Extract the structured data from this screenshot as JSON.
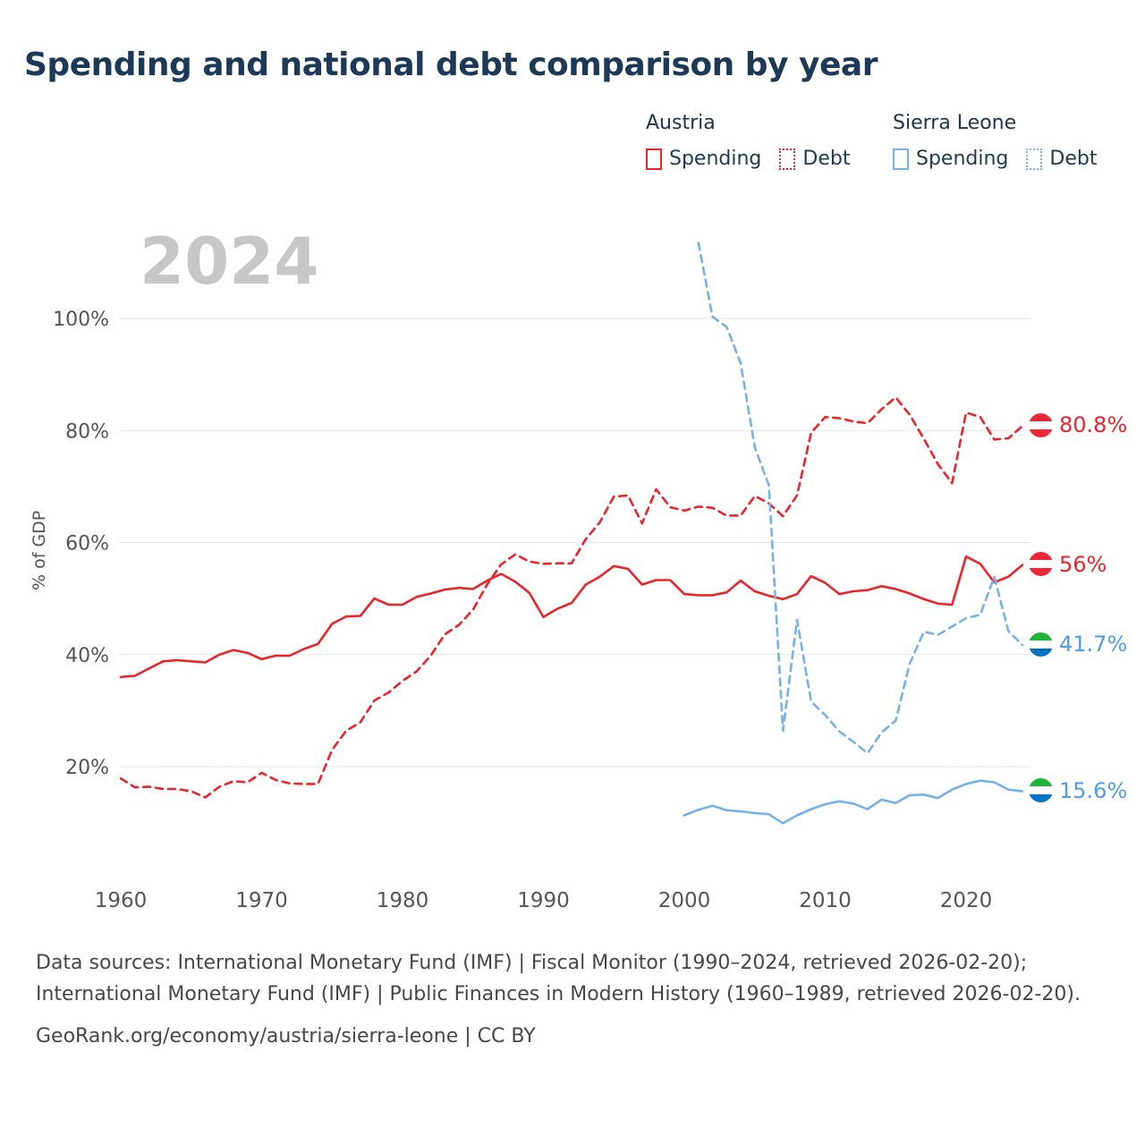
{
  "page": {
    "title": "Spending and national debt comparison by year",
    "watermark": "2024"
  },
  "legend": {
    "groups": [
      {
        "country": "Austria",
        "color": "#e8252b",
        "items": [
          {
            "label": "Spending",
            "dash": "solid"
          },
          {
            "label": "Debt",
            "dash": "dotted"
          }
        ]
      },
      {
        "country": "Sierra Leone",
        "color": "#76b1e8",
        "items": [
          {
            "label": "Spending",
            "dash": "solid"
          },
          {
            "label": "Debt",
            "dash": "dotted"
          }
        ]
      }
    ]
  },
  "flags": {
    "austria": [
      "#ed2939",
      "#ffffff",
      "#ed2939"
    ],
    "sierra-leone": [
      "#1eb53a",
      "#ffffff",
      "#0072c6"
    ]
  },
  "footer": {
    "sources": "Data sources: International Monetary Fund (IMF) | Fiscal Monitor (1990–2024, retrieved 2026-02-20); International Monetary Fund (IMF) | Public Finances in Modern History (1960–1989, retrieved 2026-02-20).",
    "attribution": "GeoRank.org/economy/austria/sierra-leone | CC BY"
  },
  "chart_data": {
    "type": "line",
    "title": "Spending and national debt comparison by year",
    "xlabel": "",
    "ylabel": "% of GDP",
    "x_ticks": [
      1960,
      1970,
      1980,
      1990,
      2000,
      2010,
      2020
    ],
    "y_ticks": [
      20,
      40,
      60,
      80,
      100
    ],
    "y_tick_suffix": "%",
    "grid": "horizontal",
    "xlim": [
      1958,
      2026
    ],
    "ylim": [
      5,
      115
    ],
    "series": [
      {
        "id": "austria-debt",
        "name": "Austria Debt",
        "country": "Austria",
        "metric": "Debt",
        "color": "#e8252b",
        "label_color": "#e8252b",
        "dash": "dashed",
        "flag": "austria",
        "end_label": "80.8%",
        "start_year": 1960,
        "values": [
          17.9,
          16.3,
          16.4,
          16,
          16,
          15.6,
          14.5,
          16.4,
          17.4,
          17.2,
          18.9,
          17.6,
          17,
          16.9,
          16.9,
          23,
          26.4,
          27.9,
          31.8,
          33.2,
          35.3,
          37,
          39.8,
          43.6,
          45.3,
          48,
          52.5,
          56.1,
          57.9,
          56.6,
          56.2,
          56.3,
          56.3,
          60.6,
          63.6,
          68.2,
          68.4,
          63.4,
          69.5,
          66.3,
          65.7,
          66.4,
          66.2,
          64.8,
          64.8,
          68.3,
          67,
          64.7,
          68.4,
          79.6,
          82.4,
          82.2,
          81.6,
          81.3,
          83.8,
          85.9,
          82.8,
          78.5,
          74,
          70.6,
          83.2,
          82.4,
          78.4,
          78.6,
          80.8
        ]
      },
      {
        "id": "austria-spending",
        "name": "Austria Spending",
        "country": "Austria",
        "metric": "Spending",
        "color": "#e8252b",
        "label_color": "#e8252b",
        "dash": "solid",
        "flag": "austria",
        "end_label": "56%",
        "start_year": 1960,
        "values": [
          36,
          36.2,
          37.5,
          38.8,
          39,
          38.8,
          38.6,
          40,
          40.8,
          40.3,
          39.2,
          39.8,
          39.8,
          41,
          41.9,
          45.5,
          46.8,
          46.9,
          50,
          48.9,
          48.9,
          50.3,
          50.9,
          51.6,
          51.9,
          51.7,
          53.2,
          54.4,
          53,
          51,
          46.7,
          48.2,
          49.2,
          52.5,
          53.9,
          55.8,
          55.3,
          52.5,
          53.3,
          53.3,
          50.8,
          50.6,
          50.6,
          51.1,
          53.2,
          51.3,
          50.5,
          49.9,
          50.8,
          54,
          52.8,
          50.8,
          51.3,
          51.5,
          52.2,
          51.7,
          50.9,
          49.9,
          49.1,
          48.9,
          57.5,
          56.2,
          52.9,
          53.9,
          56
        ]
      },
      {
        "id": "sierra-leone-debt",
        "name": "Sierra Leone Debt",
        "country": "Sierra Leone",
        "metric": "Debt",
        "color": "#76b1e8",
        "label_color": "#4f9de4",
        "dash": "dashed",
        "flag": "sierra-leone",
        "end_label": "41.7%",
        "start_year": 2001,
        "values": [
          113.5,
          100.3,
          98.5,
          92,
          77,
          70.2,
          26.4,
          46.2,
          31.6,
          29.2,
          26.3,
          24.4,
          22.4,
          26.1,
          28.2,
          38.4,
          44.1,
          43.5,
          45,
          46.5,
          47.1,
          53.9,
          44.2,
          41.7
        ]
      },
      {
        "id": "sierra-leone-spending",
        "name": "Sierra Leone Spending",
        "country": "Sierra Leone",
        "metric": "Spending",
        "color": "#76b1e8",
        "label_color": "#4f9de4",
        "dash": "solid",
        "flag": "sierra-leone",
        "end_label": "15.6%",
        "start_year": 2000,
        "values": [
          11.3,
          12.3,
          13,
          12.2,
          12,
          11.7,
          11.5,
          9.9,
          11.3,
          12.4,
          13.3,
          13.8,
          13.4,
          12.4,
          14.1,
          13.5,
          14.9,
          15,
          14.4,
          15.9,
          16.9,
          17.5,
          17.2,
          15.9,
          15.6
        ]
      }
    ]
  }
}
